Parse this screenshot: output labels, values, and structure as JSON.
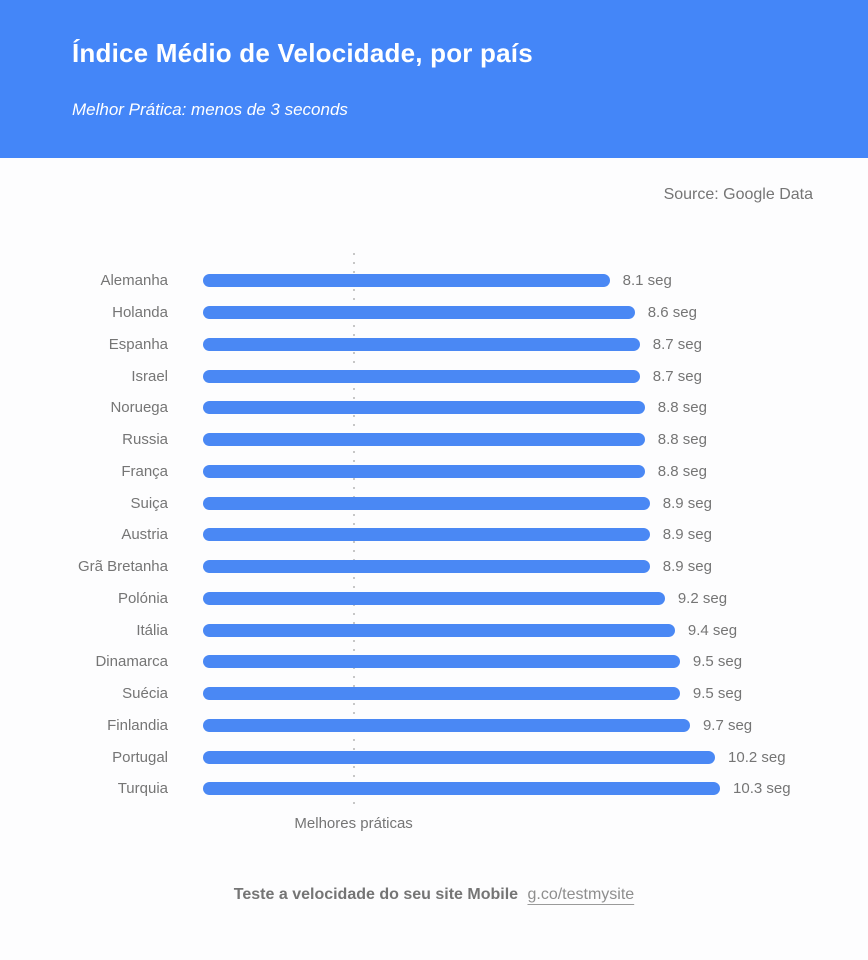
{
  "header": {
    "title": "Índice Médio de Velocidade, por país",
    "subtitle": "Melhor Prática: menos de 3 seconds",
    "background_color": "#4486f8"
  },
  "source": {
    "label": "Source: Google Data"
  },
  "chart_data": {
    "type": "bar",
    "orientation": "horizontal",
    "title": "Índice Médio de Velocidade, por país",
    "subtitle": "Melhor Prática: menos de 3 seconds",
    "unit": "seg",
    "categories": [
      "Alemanha",
      "Holanda",
      "Espanha",
      "Israel",
      "Noruega",
      "Russia",
      "França",
      "Suiça",
      "Austria",
      "Grã Bretanha",
      "Polónia",
      "Itália",
      "Dinamarca",
      "Suécia",
      "Finlandia",
      "Portugal",
      "Turquia"
    ],
    "values": [
      8.1,
      8.6,
      8.7,
      8.7,
      8.8,
      8.8,
      8.8,
      8.9,
      8.9,
      8.9,
      9.2,
      9.4,
      9.5,
      9.5,
      9.7,
      10.2,
      10.3
    ],
    "value_labels": [
      "8.1 seg",
      "8.6 seg",
      "8.7 seg",
      "8.7 seg",
      "8.8 seg",
      "8.8 seg",
      "8.8 seg",
      "8.9 seg",
      "8.9 seg",
      "8.9 seg",
      "9.2 seg",
      "9.4 seg",
      "9.5 seg",
      "9.5 seg",
      "9.7 seg",
      "10.2 seg",
      "10.3 seg"
    ],
    "xlim": [
      0,
      10.3
    ],
    "grid": false,
    "bar_color": "#4a88f4",
    "label_color": "#757575",
    "reference_line": {
      "value": 3,
      "label": "Melhores práticas",
      "style": "dotted"
    }
  },
  "footer": {
    "text_bold": "Teste a velocidade do seu site Mobile",
    "link": "g.co/testmysite"
  }
}
